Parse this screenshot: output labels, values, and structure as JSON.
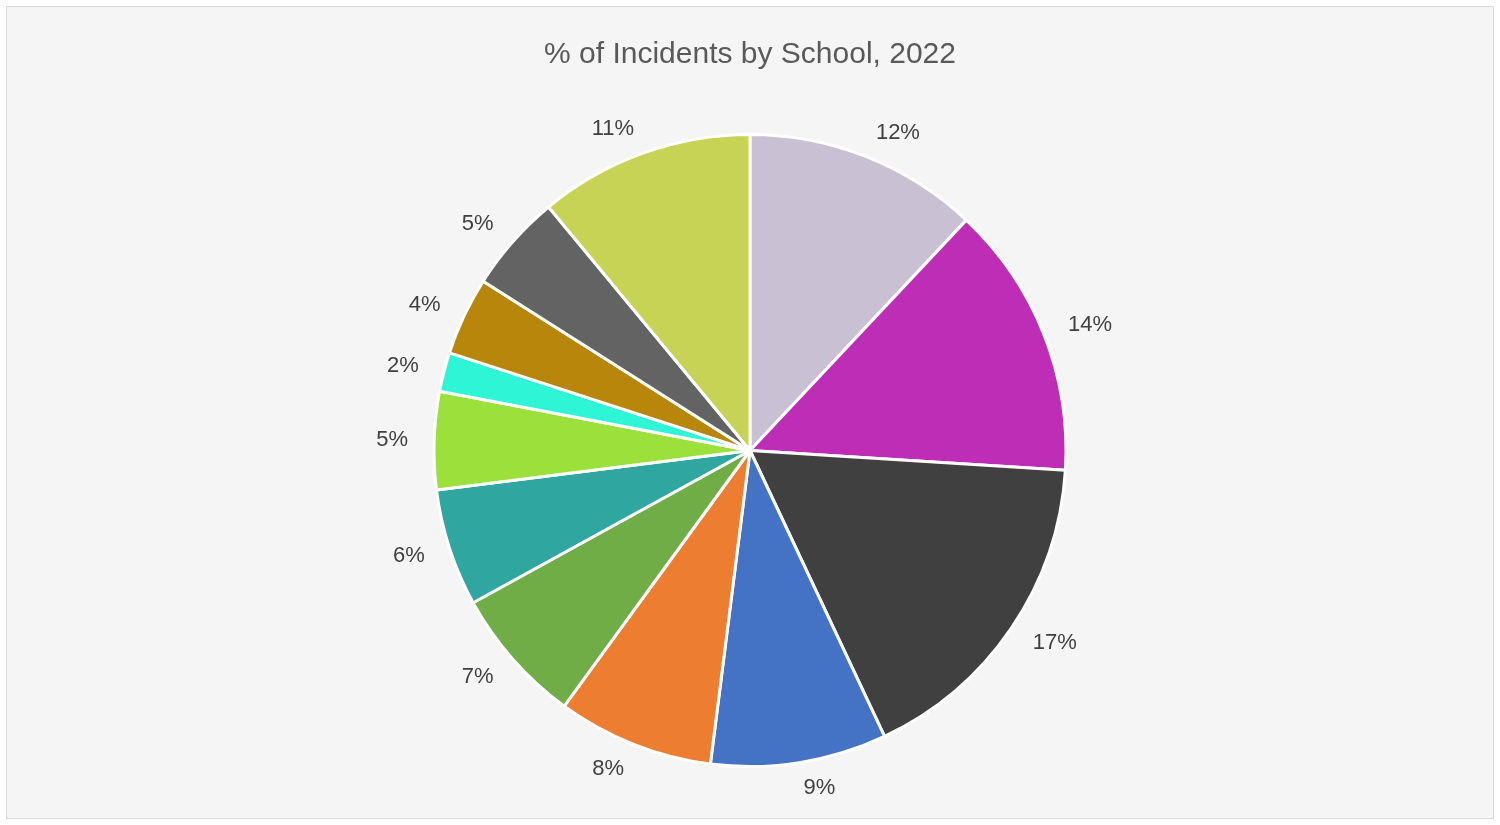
{
  "chart_data": {
    "type": "pie",
    "title": "% of Incidents by School, 2022",
    "values": [
      12,
      14,
      17,
      9,
      8,
      7,
      6,
      5,
      2,
      4,
      5,
      11
    ],
    "value_labels": [
      "12%",
      "14%",
      "17%",
      "9%",
      "8%",
      "7%",
      "6%",
      "5%",
      "2%",
      "4%",
      "5%",
      "11%"
    ],
    "colors": [
      "#c9c0d3",
      "#be2db5",
      "#404040",
      "#4472c4",
      "#ed7d31",
      "#70ad47",
      "#2fa7a0",
      "#9be03b",
      "#2ef5d6",
      "#b8860b",
      "#636363",
      "#c7d354"
    ],
    "data_labels": true
  }
}
